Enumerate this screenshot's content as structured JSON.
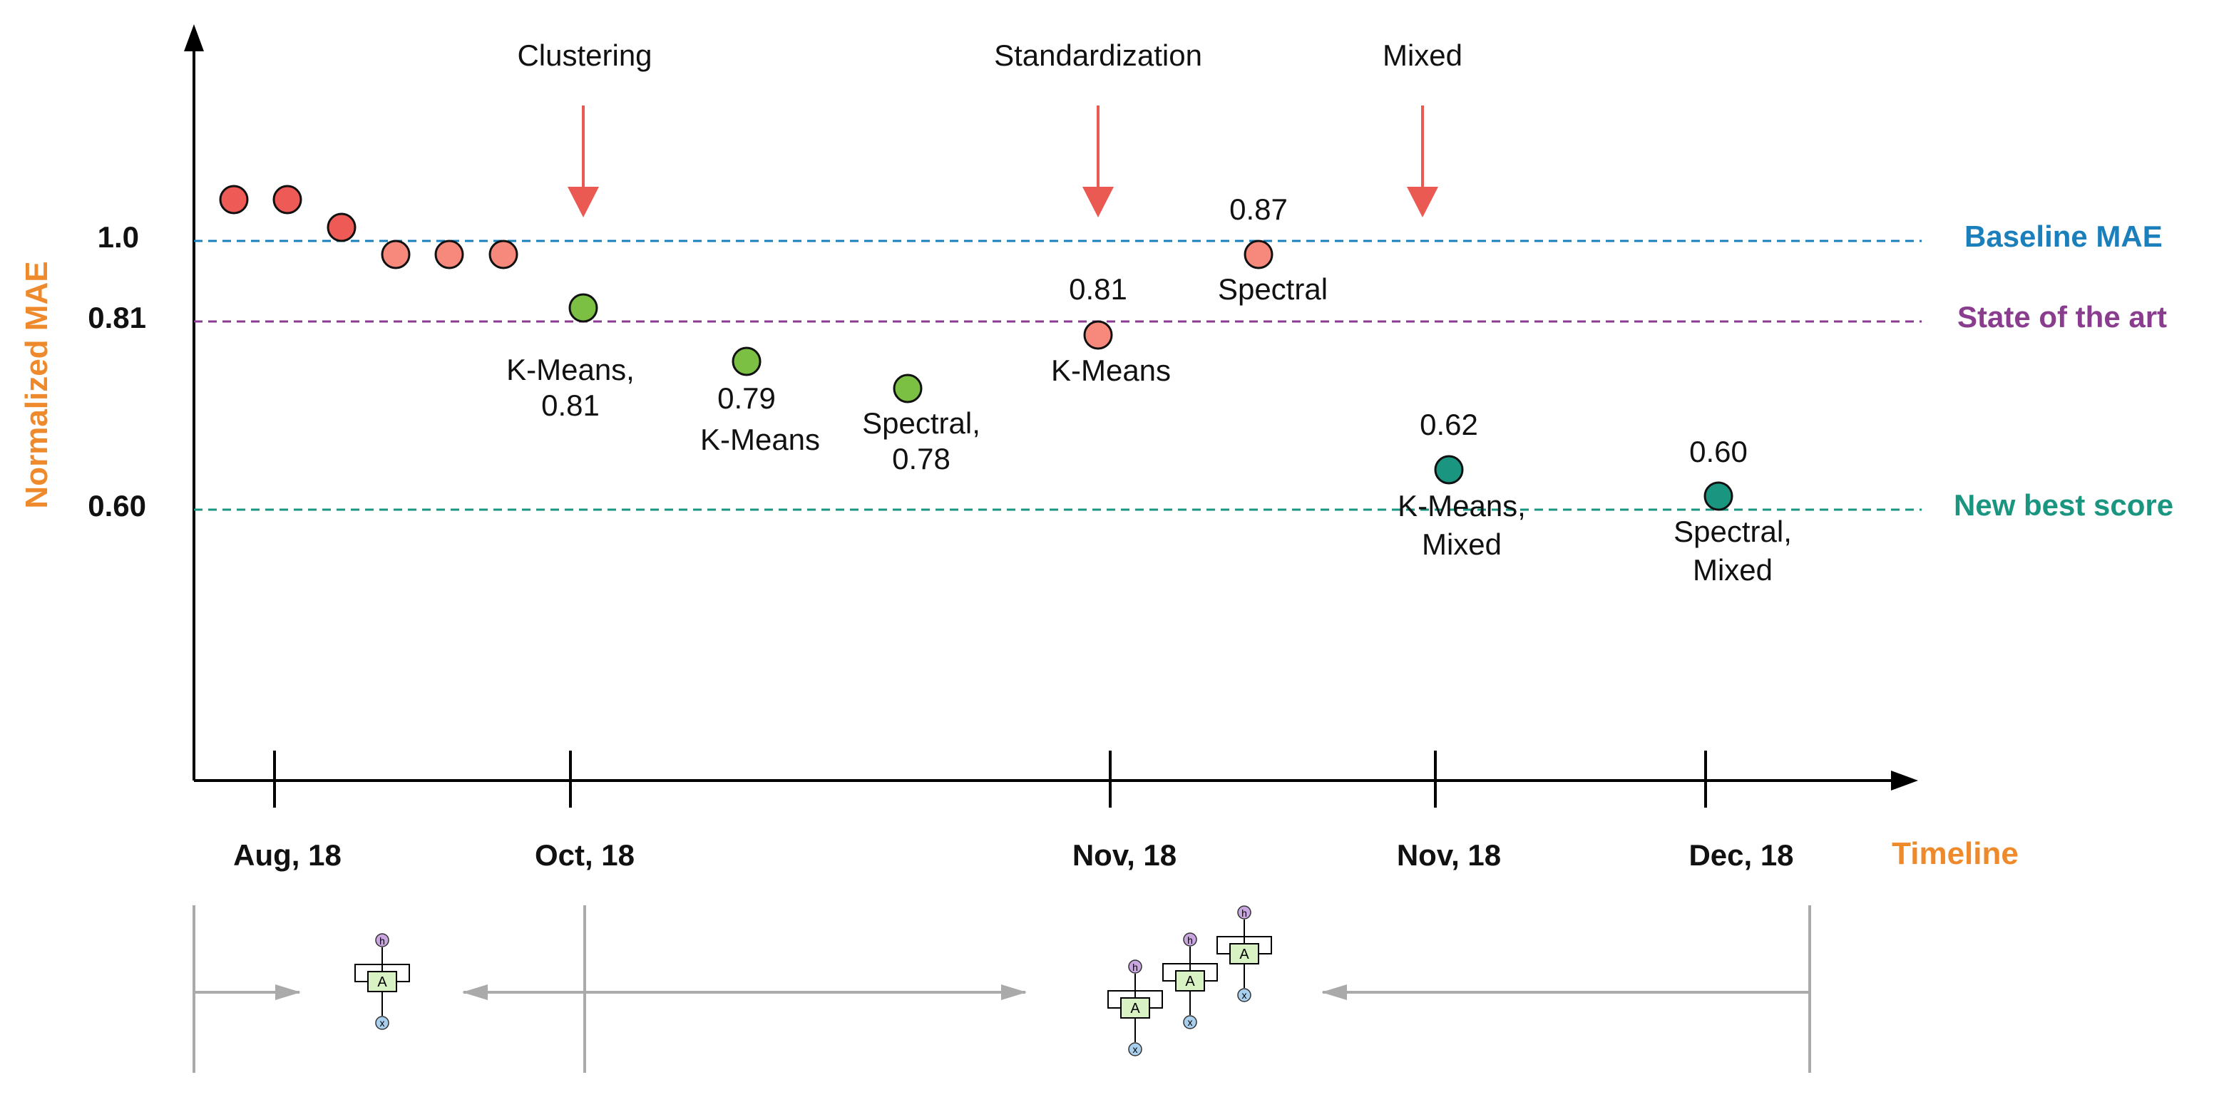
{
  "ylabel": "Normalized MAE",
  "xlabel": "Timeline",
  "y_ticks": [
    "1.0",
    "0.81",
    "0.60"
  ],
  "x_ticks": [
    "Aug, 18",
    "Oct, 18",
    "Nov, 18",
    "Nov, 18",
    "Dec, 18"
  ],
  "events": [
    "Clustering",
    "Standardization",
    "Mixed"
  ],
  "reference_lines": [
    {
      "label": "Baseline MAE",
      "color": "#1a7fba"
    },
    {
      "label": "State of the art",
      "color": "#8a3d8f"
    },
    {
      "label": "New best score",
      "color": "#1a9580"
    }
  ],
  "point_labels": [
    "K-Means,",
    "0.81",
    "0.79",
    "K-Means",
    "Spectral,",
    "0.78",
    "0.81",
    "K-Means",
    "0.87",
    "Spectral",
    "0.62",
    "K-Means,",
    "Mixed",
    "0.60",
    "Spectral,",
    "Mixed"
  ],
  "diagram_glyphs": [
    "h",
    "A",
    "x"
  ],
  "colors": {
    "event_arrow": "#ea5a52",
    "point_red": "#ee5a55",
    "point_salmon": "#f7897c",
    "point_green": "#7bbf43",
    "point_teal": "#1a9580",
    "bracket_gray": "#aaaaaa"
  }
}
